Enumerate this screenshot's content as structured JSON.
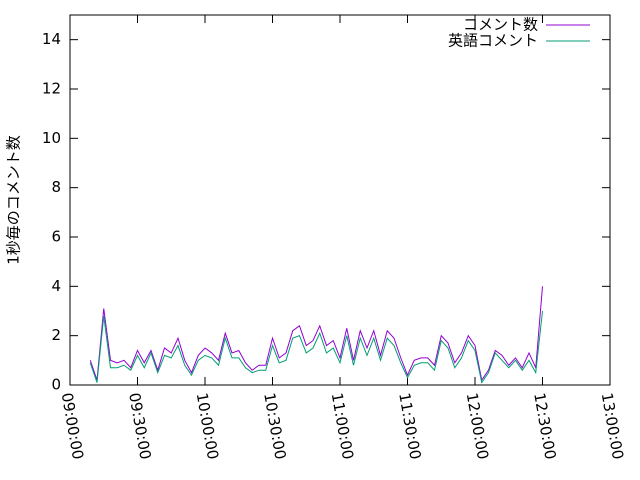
{
  "chart_data": {
    "type": "line",
    "ylabel": "1秒毎のコメント数",
    "x": [
      "09:09:00",
      "09:12:00",
      "09:15:00",
      "09:18:00",
      "09:21:00",
      "09:24:00",
      "09:27:00",
      "09:30:00",
      "09:33:00",
      "09:36:00",
      "09:39:00",
      "09:42:00",
      "09:45:00",
      "09:48:00",
      "09:51:00",
      "09:54:00",
      "09:57:00",
      "10:00:00",
      "10:03:00",
      "10:06:00",
      "10:09:00",
      "10:12:00",
      "10:15:00",
      "10:18:00",
      "10:21:00",
      "10:24:00",
      "10:27:00",
      "10:30:00",
      "10:33:00",
      "10:36:00",
      "10:39:00",
      "10:42:00",
      "10:45:00",
      "10:48:00",
      "10:51:00",
      "10:54:00",
      "10:57:00",
      "11:00:00",
      "11:03:00",
      "11:06:00",
      "11:09:00",
      "11:12:00",
      "11:15:00",
      "11:18:00",
      "11:21:00",
      "11:24:00",
      "11:27:00",
      "11:30:00",
      "11:33:00",
      "11:36:00",
      "11:39:00",
      "11:42:00",
      "11:45:00",
      "11:48:00",
      "11:51:00",
      "11:54:00",
      "11:57:00",
      "12:00:00",
      "12:03:00",
      "12:06:00",
      "12:09:00",
      "12:12:00",
      "12:15:00",
      "12:18:00",
      "12:21:00",
      "12:24:00",
      "12:27:00",
      "12:30:00"
    ],
    "series": [
      {
        "name": "コメント数",
        "color": "#9400d3",
        "values": [
          1.0,
          0.2,
          3.1,
          1.0,
          0.9,
          1.0,
          0.7,
          1.4,
          0.9,
          1.4,
          0.6,
          1.5,
          1.3,
          1.9,
          1.0,
          0.5,
          1.2,
          1.5,
          1.3,
          1.0,
          2.1,
          1.3,
          1.4,
          0.9,
          0.6,
          0.8,
          0.8,
          1.9,
          1.1,
          1.3,
          2.2,
          2.4,
          1.6,
          1.8,
          2.4,
          1.6,
          1.8,
          1.1,
          2.3,
          1.0,
          2.2,
          1.5,
          2.2,
          1.2,
          2.2,
          1.9,
          1.1,
          0.4,
          1.0,
          1.1,
          1.1,
          0.8,
          2.0,
          1.7,
          0.9,
          1.3,
          2.0,
          1.6,
          0.2,
          0.6,
          1.4,
          1.2,
          0.8,
          1.1,
          0.7,
          1.3,
          0.7,
          4.0
        ]
      },
      {
        "name": "英語コメント",
        "color": "#009e73",
        "values": [
          0.9,
          0.1,
          2.8,
          0.7,
          0.7,
          0.8,
          0.6,
          1.2,
          0.7,
          1.3,
          0.5,
          1.2,
          1.1,
          1.6,
          0.8,
          0.4,
          1.0,
          1.2,
          1.1,
          0.8,
          1.9,
          1.1,
          1.1,
          0.7,
          0.5,
          0.6,
          0.6,
          1.6,
          0.9,
          1.0,
          1.9,
          2.0,
          1.3,
          1.5,
          2.1,
          1.3,
          1.5,
          0.9,
          2.0,
          0.8,
          1.9,
          1.2,
          1.9,
          1.0,
          1.9,
          1.6,
          0.9,
          0.3,
          0.8,
          0.9,
          0.9,
          0.6,
          1.8,
          1.5,
          0.7,
          1.1,
          1.8,
          1.4,
          0.1,
          0.5,
          1.3,
          1.0,
          0.7,
          1.0,
          0.6,
          1.0,
          0.5,
          3.0
        ]
      }
    ],
    "xlim": [
      "09:00:00",
      "13:00:00"
    ],
    "xticks": [
      "09:00:00",
      "09:30:00",
      "10:00:00",
      "10:30:00",
      "11:00:00",
      "11:30:00",
      "12:00:00",
      "12:30:00",
      "13:00:00"
    ],
    "ylim": [
      0,
      15
    ],
    "yticks": [
      0,
      2,
      4,
      6,
      8,
      10,
      12,
      14
    ],
    "legend": "top-right"
  }
}
